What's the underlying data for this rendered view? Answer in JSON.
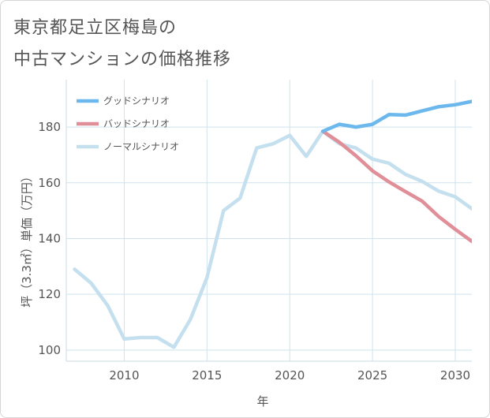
{
  "title": {
    "line1": "東京都足立区梅島の",
    "line2": "中古マンションの価格推移"
  },
  "chart_data": {
    "type": "line",
    "xlabel": "年",
    "ylabel": "坪（3.3㎡）単価（万円）",
    "xlim": [
      2006.5,
      2031
    ],
    "ylim": [
      96,
      197
    ],
    "xticks": [
      2010,
      2015,
      2020,
      2025,
      2030
    ],
    "yticks": [
      100,
      120,
      140,
      160,
      180
    ],
    "grid": true,
    "legend_position": "top-left",
    "series": [
      {
        "name": "グッドシナリオ",
        "color": "#6cb8ec",
        "x": [
          2022,
          2023,
          2024,
          2025,
          2026,
          2027,
          2028,
          2029,
          2030,
          2031
        ],
        "values": [
          178.5,
          181,
          180,
          181,
          184.5,
          184.3,
          185.8,
          187.3,
          188,
          189.2
        ]
      },
      {
        "name": "バッドシナリオ",
        "color": "#e08f99",
        "x": [
          2022,
          2023,
          2024,
          2025,
          2026,
          2027,
          2028,
          2029,
          2030,
          2031
        ],
        "values": [
          178.5,
          174.5,
          169.7,
          164.3,
          160.3,
          156.8,
          153.4,
          147.9,
          143.3,
          139
        ]
      },
      {
        "name": "ノーマルシナリオ",
        "color": "#c4dfee",
        "x": [
          2007,
          2008,
          2009,
          2010,
          2011,
          2012,
          2013,
          2014,
          2015,
          2016,
          2017,
          2018,
          2019,
          2020,
          2021,
          2022,
          2023,
          2024,
          2025,
          2026,
          2027,
          2028,
          2029,
          2030,
          2031
        ],
        "values": [
          129,
          124,
          116,
          104,
          104.5,
          104.5,
          101,
          111,
          126,
          150,
          154.5,
          172.5,
          174,
          177,
          169.5,
          178.5,
          174,
          172.5,
          168.5,
          167,
          163,
          160.5,
          157,
          155,
          150.7
        ]
      }
    ]
  }
}
